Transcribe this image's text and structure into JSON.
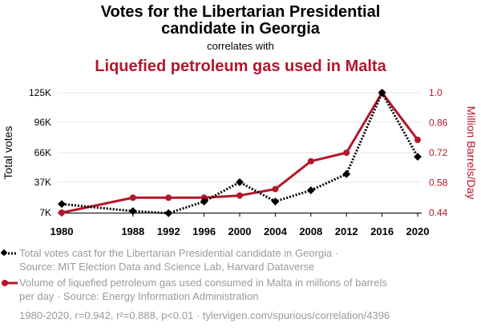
{
  "chart_data": {
    "type": "line",
    "title_line1": "Votes for the Libertarian Presidential",
    "title_line2": "candidate in Georgia",
    "correlates_text": "correlates with",
    "title2": "Liquefied petroleum gas used in Malta",
    "categories": [
      "1980",
      "1988",
      "1992",
      "1996",
      "2000",
      "2004",
      "2008",
      "2012",
      "2016",
      "2020"
    ],
    "x": [
      1980,
      1988,
      1992,
      1996,
      2000,
      2004,
      2008,
      2012,
      2016,
      2020
    ],
    "xlim": [
      1980,
      2020
    ],
    "left_axis": {
      "label": "Total votes",
      "ticks": [
        7000,
        37000,
        66000,
        96000,
        125000
      ],
      "tick_labels": [
        "7K",
        "37K",
        "66K",
        "96K",
        "125K"
      ],
      "ylim": [
        7000,
        125000
      ]
    },
    "right_axis": {
      "label": "Million Barrels/Day",
      "ticks": [
        0.44,
        0.58,
        0.72,
        0.86,
        1.0
      ],
      "tick_labels": [
        "0.44",
        "0.58",
        "0.72",
        "0.86",
        "1.0"
      ],
      "ylim": [
        0.44,
        1.0
      ]
    },
    "series": [
      {
        "name": "Total votes cast for the Libertarian Presidential candidate in Georgia",
        "axis": "left",
        "color": "#000000",
        "style": "dotted",
        "marker": "diamond",
        "values": [
          15500,
          8500,
          6500,
          18000,
          37000,
          18000,
          29000,
          45000,
          125000,
          62000
        ]
      },
      {
        "name": "Volume of liquefied petroleum gas used consumed in Malta in millions of barrels per day",
        "axis": "right",
        "color": "#b5162b",
        "style": "solid",
        "marker": "circle",
        "values": [
          0.44,
          0.51,
          0.51,
          0.51,
          0.52,
          0.55,
          0.68,
          0.72,
          1.0,
          0.78
        ]
      }
    ],
    "legend": [
      {
        "line1": "Total votes cast for the Libertarian Presidential candidate in Georgia ·",
        "line2": "Source: MIT Election Data and Science Lab, Harvard Dataverse"
      },
      {
        "line1": "Volume of liquefied petroleum gas used consumed in Malta in millions of barrels",
        "line2": "per day · Source: Energy Information Administration"
      }
    ],
    "footer": "1980-2020, r=0.942, r²=0.888, p<0.01 · tylervigen.com/spurious/correlation/4396",
    "colors": {
      "primary": "#000000",
      "secondary": "#b5162b",
      "grid": "#e6e6e6",
      "muted": "#9a9a9a"
    }
  }
}
